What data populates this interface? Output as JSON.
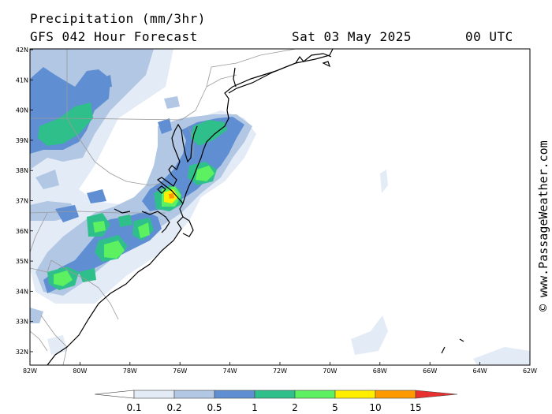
{
  "header": {
    "title": "Precipitation (mm/3hr)",
    "subtitle": "GFS 042 Hour Forecast",
    "date": "Sat 03 May 2025",
    "time": "00 UTC"
  },
  "credit": "© www.PassageWeather.com",
  "map": {
    "lat_labels": [
      "42N",
      "41N",
      "40N",
      "39N",
      "38N",
      "37N",
      "36N",
      "35N",
      "34N",
      "33N",
      "32N"
    ],
    "lon_labels": [
      "82W",
      "80W",
      "78W",
      "76W",
      "74W",
      "72W",
      "70W",
      "68W",
      "66W",
      "64W",
      "62W"
    ]
  },
  "legend": {
    "labels": [
      "0.1",
      "0.2",
      "0.5",
      "1",
      "2",
      "5",
      "10",
      "15"
    ],
    "colors": {
      "lt01": "#ffffff",
      "b01": "#e3ebf6",
      "b02": "#b1c7e4",
      "b05": "#5f8fd2",
      "b1": "#2fbf8a",
      "b2": "#5df060",
      "b5": "#ffee00",
      "b10": "#ff9900",
      "b15": "#e83030"
    }
  }
}
